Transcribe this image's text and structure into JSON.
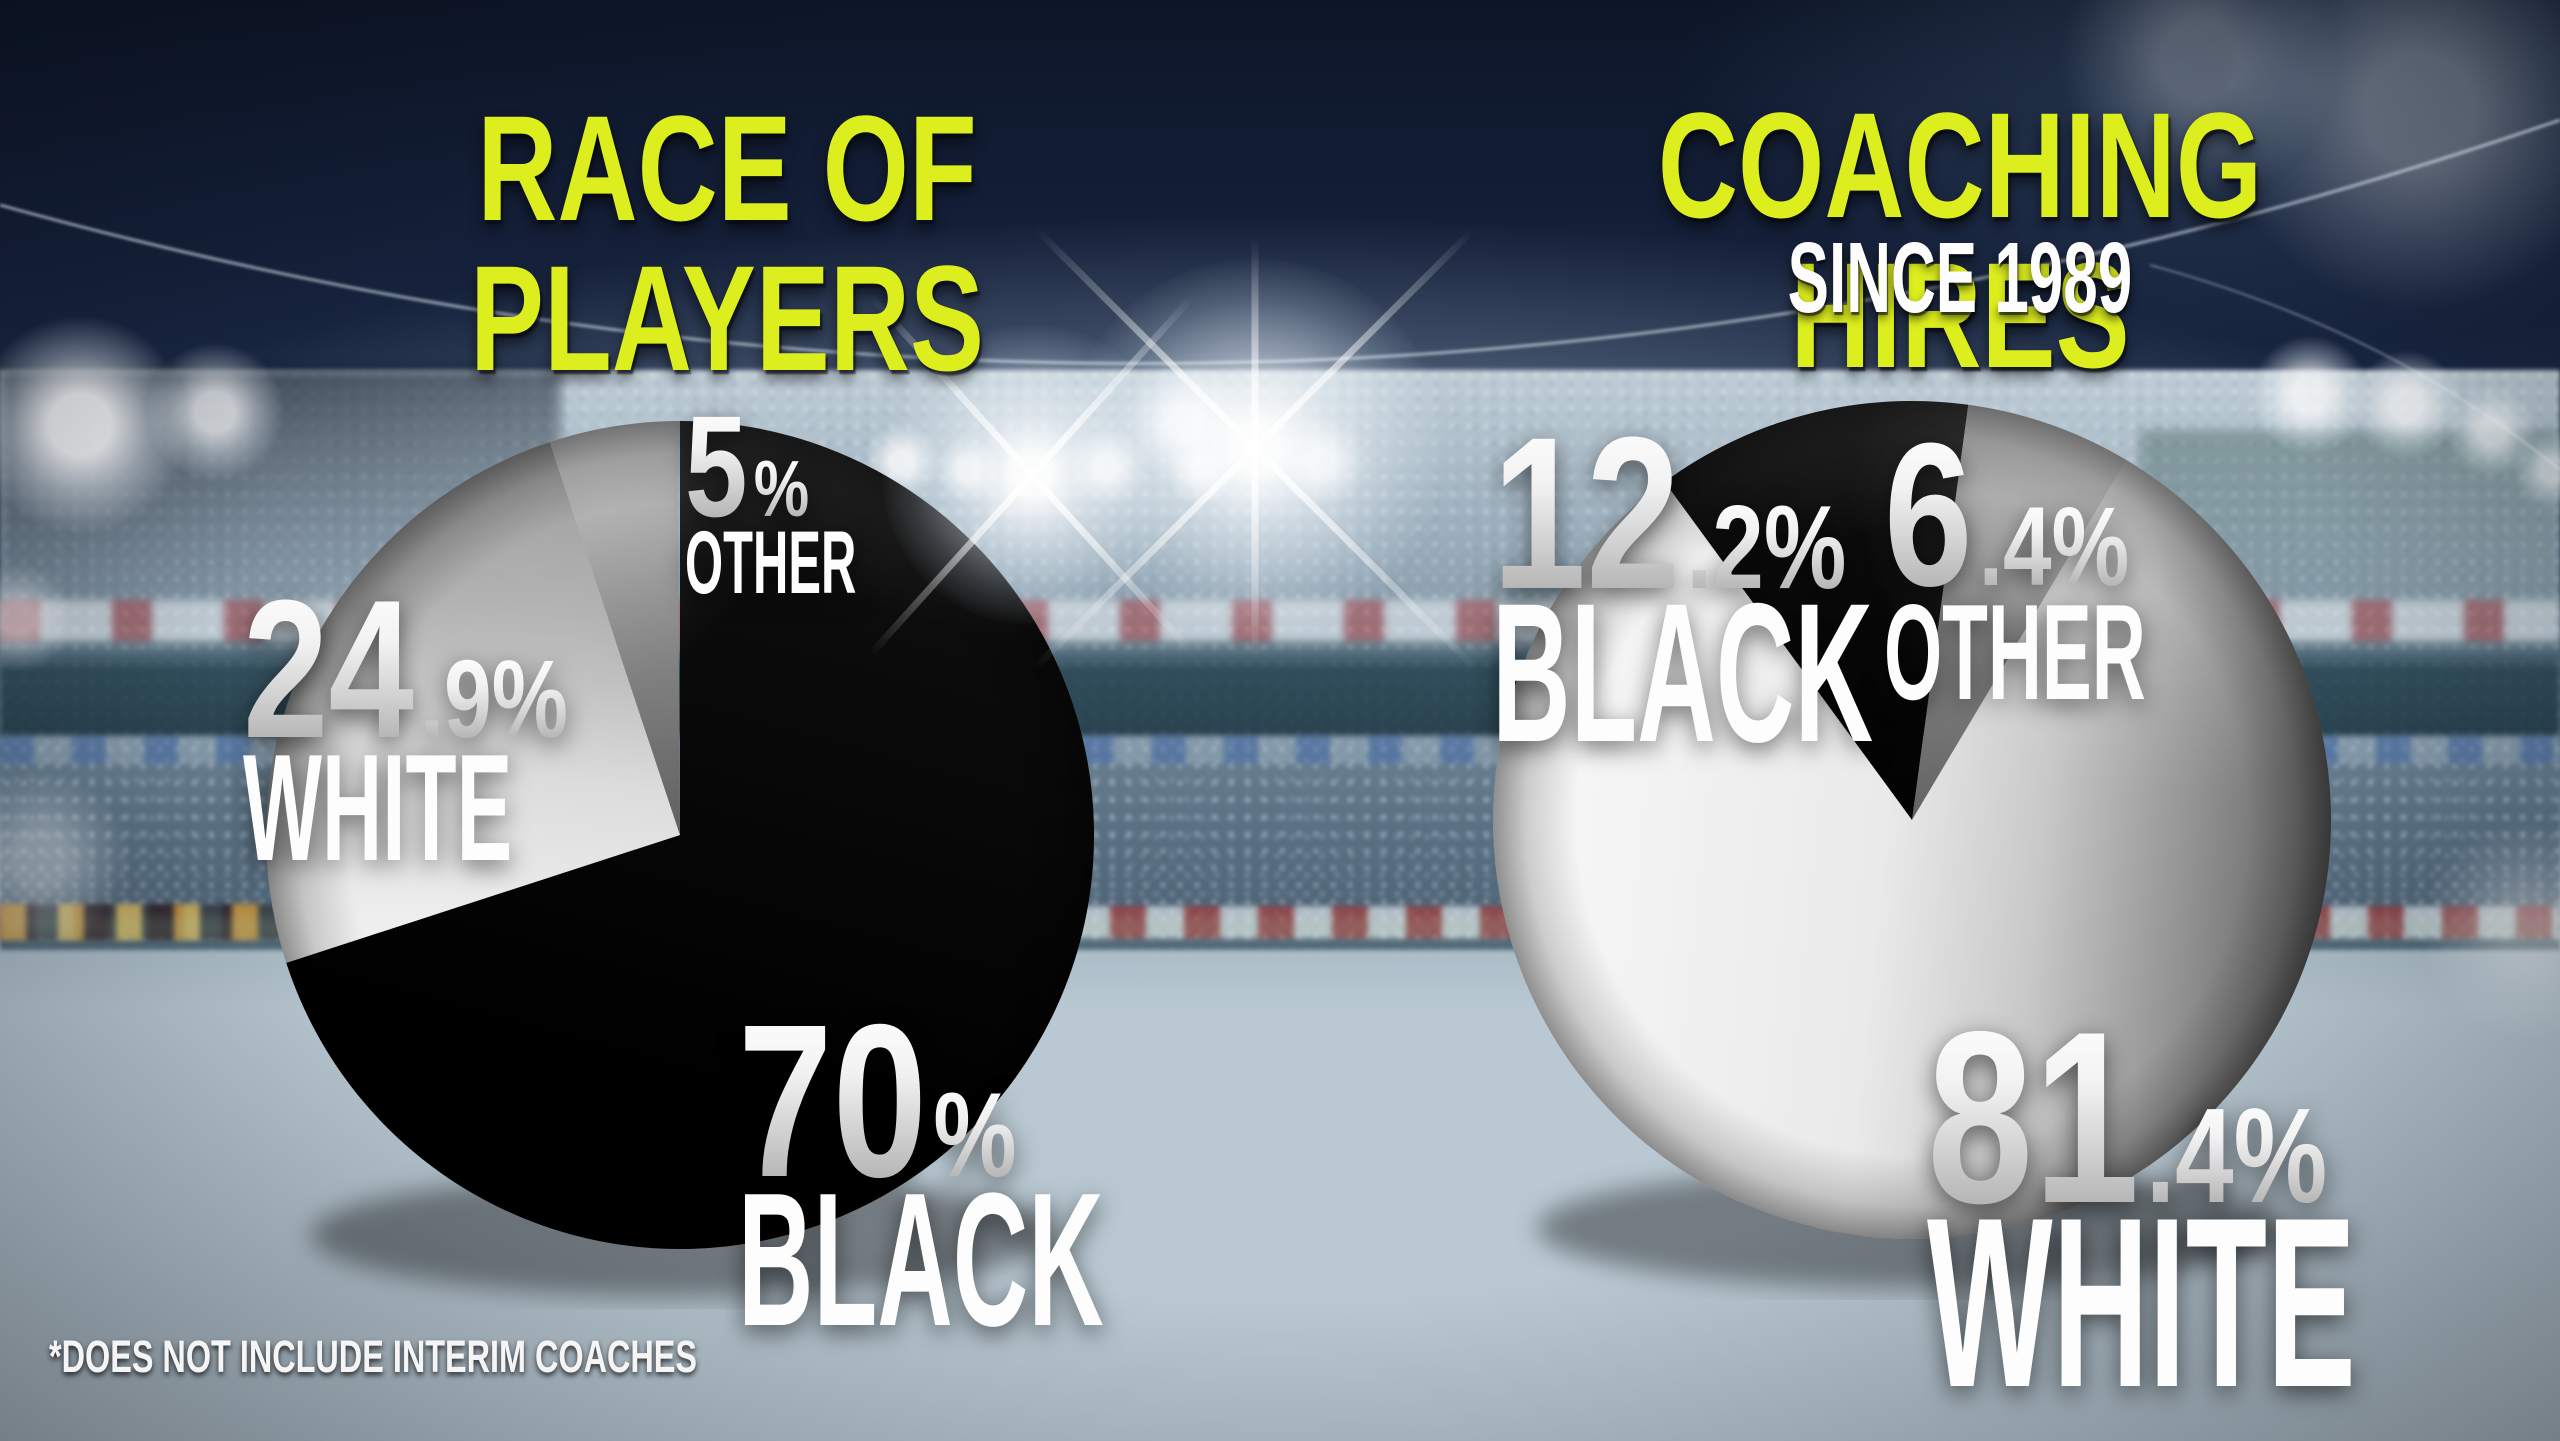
{
  "header": {
    "title_left": "RACE OF PLAYERS",
    "title_right": "COACHING HIRES",
    "subtitle_right": "SINCE 1989"
  },
  "footnote": "*DOES NOT INCLUDE INTERIM COACHES",
  "colors": {
    "accent_yellow": "#dcee1e",
    "label_white": "#fdfdfd",
    "slice_black": "#050505",
    "slice_white": "#ededed",
    "slice_gray": "#8c8c8c"
  },
  "chart_data": [
    {
      "type": "pie",
      "title": "RACE OF PLAYERS",
      "unit": "%",
      "start_angle_deg": 0,
      "direction": "clockwise",
      "legend_position": "around",
      "slices": [
        {
          "label": "BLACK",
          "value": 70,
          "fill": "black",
          "display": {
            "big": "70",
            "suffix": "%",
            "word": "BLACK"
          }
        },
        {
          "label": "WHITE",
          "value": 24.9,
          "fill": "white",
          "display": {
            "big": "24",
            "suffix": ".9%",
            "word": "WHITE"
          }
        },
        {
          "label": "OTHER",
          "value": 5,
          "fill": "gray",
          "display": {
            "big": "5",
            "suffix": "%",
            "word": "OTHER"
          }
        }
      ]
    },
    {
      "type": "pie",
      "title": "COACHING HIRES SINCE 1989",
      "unit": "%",
      "start_angle_deg": -36.2,
      "direction": "clockwise",
      "legend_position": "around",
      "slices": [
        {
          "label": "BLACK",
          "value": 12.2,
          "fill": "black",
          "display": {
            "big": "12",
            "suffix": ".2%",
            "word": "BLACK"
          }
        },
        {
          "label": "OTHER",
          "value": 6.4,
          "fill": "gray",
          "display": {
            "big": "6",
            "suffix": ".4%",
            "word": "OTHER"
          }
        },
        {
          "label": "WHITE",
          "value": 81.4,
          "fill": "white",
          "display": {
            "big": "81",
            "suffix": ".4%",
            "word": "WHITE"
          }
        }
      ]
    }
  ]
}
